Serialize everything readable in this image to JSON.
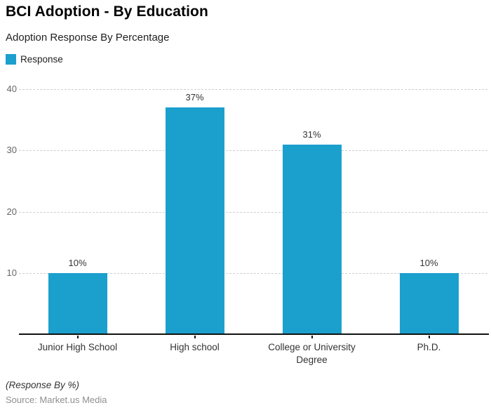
{
  "header": {
    "title": "BCI Adoption - By Education",
    "subtitle": "Adoption Response By Percentage"
  },
  "legend": {
    "label": "Response",
    "color": "#1BA0CE"
  },
  "chart_data": {
    "type": "bar",
    "title": "BCI Adoption - By Education",
    "subtitle": "Adoption Response By Percentage",
    "categories": [
      "Junior High School",
      "High school",
      "College or University Degree",
      "Ph.D."
    ],
    "values": [
      10,
      37,
      31,
      10
    ],
    "value_labels": [
      "10%",
      "37%",
      "31%",
      "10%"
    ],
    "series": [
      {
        "name": "Response",
        "values": [
          10,
          37,
          31,
          10
        ]
      }
    ],
    "xlabel": "",
    "ylabel": "",
    "ylim": [
      0,
      40
    ],
    "y_ticks": [
      10,
      20,
      30,
      40
    ],
    "grid": "horizontal-dashed",
    "legend_position": "top-left",
    "bar_color": "#1BA0CE",
    "axis_color": "#111111",
    "gridline_color": "#cfcfcf"
  },
  "footer": {
    "note": "(Response By %)",
    "source": "Source: Market.us Media"
  }
}
